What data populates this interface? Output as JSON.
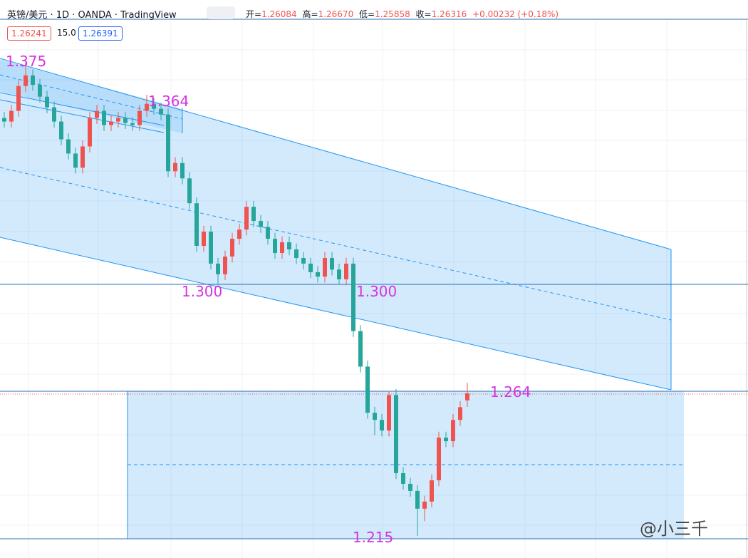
{
  "header": {
    "symbol": "英镑/美元 · 1D · OANDA · TradingView",
    "ohlc": [
      {
        "label": "开=",
        "value": "1.26084"
      },
      {
        "label": "高=",
        "value": "1.26670"
      },
      {
        "label": "低=",
        "value": "1.25858"
      },
      {
        "label": "收=",
        "value": "1.26316"
      }
    ],
    "change": "+0.00232 (+0.18%)",
    "badges": [
      "1.26241",
      "15.0",
      "1.26391"
    ]
  },
  "watermark": "@小三千",
  "chart_data": {
    "type": "candlestick",
    "up_color": "#ef5350",
    "down_color": "#26a69a",
    "open": [
      1.3562,
      1.355,
      1.3586,
      1.367,
      1.3706,
      1.3674,
      1.3634,
      1.3598,
      1.355,
      1.349,
      1.3442,
      1.3394,
      1.3466,
      1.3562,
      1.3586,
      1.3538,
      1.355,
      1.3562,
      1.3545,
      1.3538,
      1.3586,
      1.361,
      1.3593,
      1.3574,
      1.3382,
      1.341,
      1.3358,
      1.3274,
      1.313,
      1.3178,
      1.307,
      1.3034,
      1.3094,
      1.3154,
      1.3185,
      1.3262,
      1.3214,
      1.3194,
      1.3154,
      1.3106,
      1.3142,
      1.3118,
      1.3089,
      1.307,
      1.3041,
      1.3026,
      1.3089,
      1.305,
      1.3017,
      1.307,
      1.2842,
      1.2722,
      1.2566,
      1.2542,
      1.2506,
      1.2626,
      1.2362,
      1.2326,
      1.2302,
      1.2242,
      1.2266,
      1.2338,
      1.2482,
      1.247,
      1.2542,
      1.2608
    ],
    "high": [
      1.3582,
      1.3606,
      1.369,
      1.375,
      1.3726,
      1.3694,
      1.3654,
      1.3618,
      1.357,
      1.351,
      1.3462,
      1.3486,
      1.3582,
      1.3606,
      1.3606,
      1.357,
      1.3582,
      1.3582,
      1.3565,
      1.3606,
      1.364,
      1.363,
      1.3613,
      1.3594,
      1.343,
      1.343,
      1.3378,
      1.3294,
      1.3198,
      1.3198,
      1.309,
      1.3114,
      1.3174,
      1.3205,
      1.3282,
      1.3282,
      1.3234,
      1.3214,
      1.3174,
      1.3162,
      1.3162,
      1.3138,
      1.3109,
      1.309,
      1.3061,
      1.3109,
      1.3109,
      1.307,
      1.309,
      1.309,
      1.2862,
      1.2742,
      1.2586,
      1.2562,
      1.264,
      1.2646,
      1.2382,
      1.2346,
      1.2322,
      1.2286,
      1.2358,
      1.2502,
      1.2502,
      1.2562,
      1.2605,
      1.2667
    ],
    "low": [
      1.353,
      1.353,
      1.3566,
      1.365,
      1.3654,
      1.3614,
      1.3578,
      1.353,
      1.347,
      1.3422,
      1.3374,
      1.3374,
      1.3446,
      1.3542,
      1.3518,
      1.3518,
      1.353,
      1.3525,
      1.3518,
      1.3518,
      1.3566,
      1.3573,
      1.3554,
      1.3362,
      1.3362,
      1.3338,
      1.3254,
      1.311,
      1.311,
      1.305,
      1.3,
      1.3014,
      1.3074,
      1.3134,
      1.3165,
      1.3194,
      1.3174,
      1.3134,
      1.3086,
      1.3086,
      1.3098,
      1.3069,
      1.305,
      1.3021,
      1.3006,
      1.3006,
      1.303,
      1.3,
      1.2997,
      1.2822,
      1.2702,
      1.2546,
      1.249,
      1.2486,
      1.2486,
      1.2342,
      1.2306,
      1.2282,
      1.215,
      1.22,
      1.2246,
      1.2318,
      1.245,
      1.245,
      1.2522,
      1.2586
    ],
    "close": [
      1.355,
      1.3586,
      1.367,
      1.3706,
      1.3674,
      1.3634,
      1.3598,
      1.355,
      1.349,
      1.3442,
      1.3394,
      1.3466,
      1.3562,
      1.3586,
      1.3538,
      1.355,
      1.3562,
      1.3545,
      1.3538,
      1.3586,
      1.361,
      1.3593,
      1.3574,
      1.3382,
      1.341,
      1.3358,
      1.3274,
      1.313,
      1.3178,
      1.307,
      1.3034,
      1.3094,
      1.3154,
      1.3185,
      1.3262,
      1.3214,
      1.3194,
      1.3154,
      1.3106,
      1.3142,
      1.3118,
      1.3089,
      1.307,
      1.3041,
      1.3026,
      1.3089,
      1.305,
      1.3017,
      1.307,
      1.2842,
      1.2722,
      1.2566,
      1.2542,
      1.2506,
      1.2626,
      1.2362,
      1.2326,
      1.2302,
      1.2242,
      1.2266,
      1.2338,
      1.2482,
      1.247,
      1.2542,
      1.2585,
      1.2632
    ],
    "annotation_color": "#d633e0",
    "annotations": [
      "1.375",
      "1.364",
      "1.300",
      "1.300",
      "1.264",
      "1.215"
    ]
  }
}
